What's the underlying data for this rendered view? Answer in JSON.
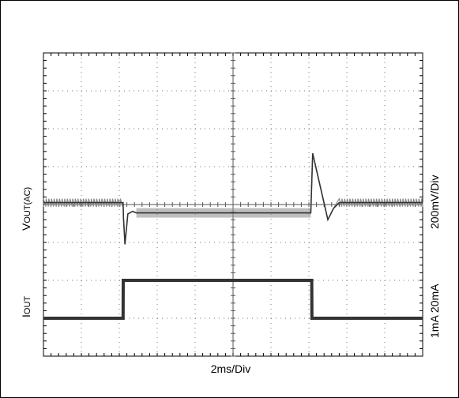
{
  "chart_data": {
    "type": "line",
    "title": "",
    "xlabel": "2ms/Div",
    "left_labels": {
      "vout_main": "V",
      "vout_sub": "OUT(AC)",
      "iout_main": "I",
      "iout_sub": "OUT"
    },
    "right_labels": {
      "vout_scale": "200mV/Div",
      "iout_scale": "1mA  20mA"
    },
    "grid": true,
    "x_divisions": 10,
    "y_divisions": 8,
    "x_unit": "ms",
    "x_range": [
      0,
      20
    ],
    "y_range_div": [
      0,
      8
    ],
    "series": [
      {
        "key": "vout",
        "points": [
          [
            0,
            4.05
          ],
          [
            4.2,
            4.05
          ],
          [
            4.22,
            3.65
          ],
          [
            4.3,
            2.95
          ],
          [
            4.45,
            3.75
          ],
          [
            4.7,
            3.82
          ],
          [
            4.9,
            3.78
          ],
          [
            10,
            3.78
          ],
          [
            14.1,
            3.78
          ],
          [
            14.2,
            5.35
          ],
          [
            15.0,
            3.6
          ],
          [
            15.3,
            3.9
          ],
          [
            15.6,
            4.05
          ],
          [
            20,
            4.05
          ]
        ]
      },
      {
        "key": "iout",
        "points": [
          [
            0,
            1.0
          ],
          [
            4.2,
            1.0
          ],
          [
            4.21,
            2.0
          ],
          [
            14.15,
            2.0
          ],
          [
            14.16,
            1.0
          ],
          [
            20,
            1.0
          ]
        ]
      }
    ]
  },
  "colors": {
    "grid": "#7a7a7a",
    "trace": "#333333",
    "trace_band": "#8a8a8a"
  }
}
